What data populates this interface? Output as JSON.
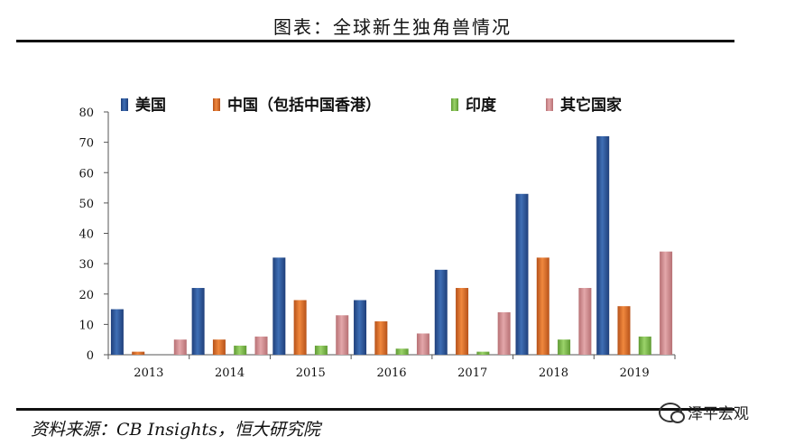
{
  "header": {
    "title": "图表：全球新生独角兽情况"
  },
  "footer": {
    "source": "资料来源：CB Insights，恒大研究院",
    "brand": "泽平宏观"
  },
  "colors": {
    "series": [
      "#3f6fb5",
      "#f0883e",
      "#9bd36a",
      "#e3a7aa"
    ],
    "series_dark": [
      "#1f3f7a",
      "#b6521a",
      "#5f9a33",
      "#b77074"
    ]
  },
  "chart_data": {
    "type": "bar",
    "categories": [
      "2013",
      "2014",
      "2015",
      "2016",
      "2017",
      "2018",
      "2019"
    ],
    "series": [
      {
        "name": "美国",
        "values": [
          15,
          22,
          32,
          18,
          28,
          53,
          72
        ]
      },
      {
        "name": "中国（包括中国香港）",
        "values": [
          1,
          5,
          18,
          11,
          22,
          32,
          16
        ]
      },
      {
        "name": "印度",
        "values": [
          0,
          3,
          3,
          2,
          1,
          5,
          6
        ]
      },
      {
        "name": "其它国家",
        "values": [
          5,
          6,
          13,
          7,
          14,
          22,
          34
        ]
      }
    ],
    "ylim": [
      0,
      80
    ],
    "yticks": [
      0,
      10,
      20,
      30,
      40,
      50,
      60,
      70,
      80
    ],
    "grid": false,
    "legend_position": "top"
  }
}
